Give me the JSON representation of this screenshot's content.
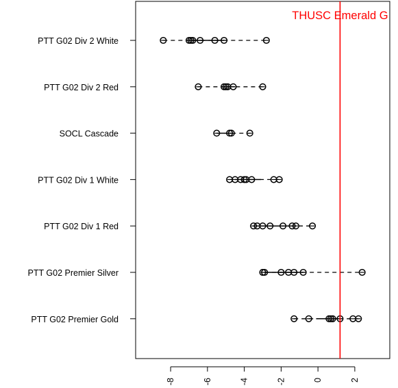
{
  "chart_data": {
    "type": "scatter",
    "orientation": "horizontal-dot-whisker",
    "title": "",
    "xlabel": "",
    "ylabel": "",
    "xlim": [
      -9.9,
      3.9
    ],
    "x_ticks": [
      -8,
      -6,
      -4,
      -2,
      0,
      2
    ],
    "x_tick_labels": [
      "-8",
      "-6",
      "-4",
      "-2",
      "0",
      "2"
    ],
    "x_tick_label_rotation": "vertical",
    "grid": false,
    "reference_line": {
      "x": 1.2,
      "label": "THUSC Emerald G",
      "color": "#ff0000"
    },
    "marker": "open-circle",
    "categories": [
      "PTT G02 Div 2 White",
      "PTT G02 Div 2 Red",
      "SOCL Cascade",
      "PTT G02 Div 1 White",
      "PTT G02 Div 1 Red",
      "PTT G02 Premier Silver",
      "PTT G02 Premier Gold"
    ],
    "series": [
      {
        "points": [
          -8.4,
          -7.0,
          -6.9,
          -6.8,
          -6.4,
          -5.6,
          -5.1,
          -2.8
        ],
        "box": [
          -6.9,
          -5.1
        ],
        "whisker": [
          -8.4,
          -2.8
        ]
      },
      {
        "points": [
          -6.5,
          -5.1,
          -5.0,
          -4.9,
          -4.6,
          -3.0
        ],
        "box": [
          -5.1,
          -4.5
        ],
        "whisker": [
          -6.5,
          -3.0
        ]
      },
      {
        "points": [
          -5.5,
          -4.8,
          -4.7,
          -3.7
        ],
        "box": [
          -5.5,
          -4.6
        ],
        "whisker": [
          -5.5,
          -3.7
        ]
      },
      {
        "points": [
          -4.8,
          -4.5,
          -4.2,
          -4.0,
          -3.9,
          -3.6,
          -2.4,
          -2.1
        ],
        "box": [
          -4.5,
          -3.1
        ],
        "whisker": [
          -4.8,
          -2.1
        ]
      },
      {
        "points": [
          -3.5,
          -3.3,
          -3.0,
          -2.6,
          -1.9,
          -1.4,
          -1.2,
          -0.3
        ],
        "box": [
          -3.3,
          -1.2
        ],
        "whisker": [
          -3.5,
          -0.3
        ]
      },
      {
        "points": [
          -3.0,
          -2.9,
          -2.0,
          -1.6,
          -1.3,
          -0.8,
          2.4
        ],
        "box": [
          -2.9,
          -0.8
        ],
        "whisker": [
          -2.9,
          2.4
        ]
      },
      {
        "points": [
          -1.3,
          -0.5,
          0.6,
          0.7,
          0.8,
          1.2,
          1.9,
          2.2
        ],
        "box": [
          -0.1,
          1.2
        ],
        "whisker": [
          -1.3,
          2.2
        ]
      }
    ]
  }
}
